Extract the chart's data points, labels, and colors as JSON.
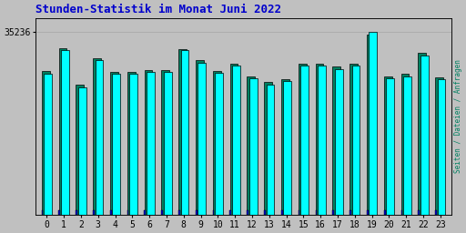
{
  "title": "Stunden-Statistik im Monat Juni 2022",
  "ylabel_right": "Seiten / Dateien / Anfragen",
  "hours": [
    0,
    1,
    2,
    3,
    4,
    5,
    6,
    7,
    8,
    9,
    10,
    11,
    12,
    13,
    14,
    15,
    16,
    17,
    18,
    19,
    20,
    21,
    22,
    23
  ],
  "series_teal": [
    27800,
    32200,
    25200,
    30200,
    27600,
    27600,
    28000,
    28000,
    32000,
    29800,
    27800,
    29200,
    26800,
    25600,
    26200,
    29200,
    29200,
    28600,
    29200,
    34800,
    26800,
    27200,
    31200,
    26600
  ],
  "series_cyan": [
    27200,
    31800,
    24600,
    29800,
    27200,
    27200,
    27600,
    27600,
    31800,
    29400,
    27400,
    28800,
    26400,
    25200,
    25800,
    28800,
    28800,
    28200,
    28800,
    35236,
    26400,
    26800,
    30800,
    26200
  ],
  "series_blue": [
    900,
    900,
    900,
    900,
    900,
    900,
    900,
    900,
    900,
    900,
    900,
    900,
    900,
    900,
    900,
    900,
    900,
    900,
    900,
    900,
    900,
    900,
    900,
    900
  ],
  "color_cyan": "#00FFFF",
  "color_teal": "#008060",
  "color_blue": "#0000CC",
  "bg_color": "#C0C0C0",
  "title_color": "#0000CC",
  "title_fontsize": 9,
  "ytick_val": 35236,
  "ymax": 38000,
  "ymin": 0,
  "grid_color": "#AAAAAA"
}
